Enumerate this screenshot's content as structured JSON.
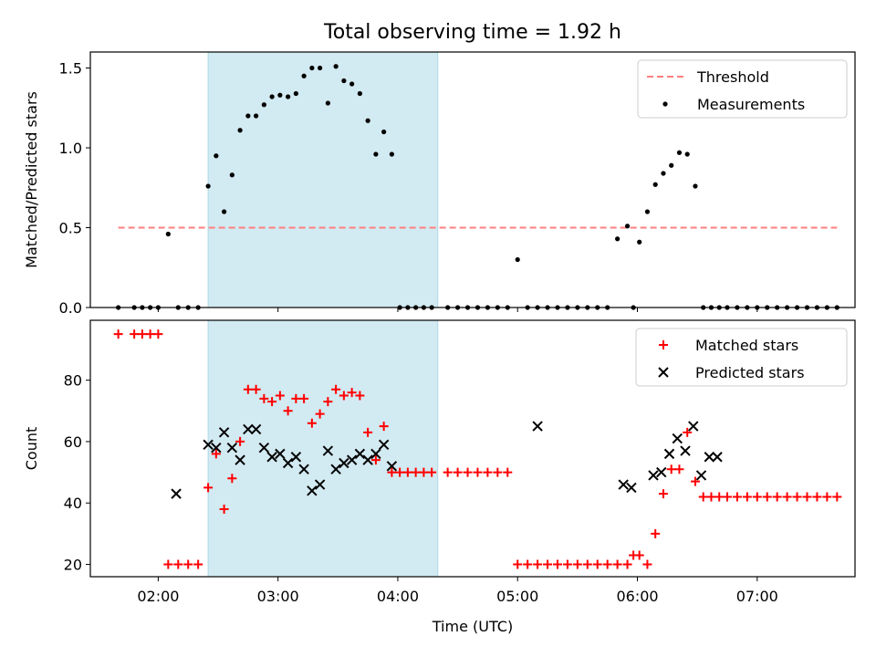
{
  "title": "Total observing time = 1.92 h",
  "chart_data": [
    {
      "type": "scatter",
      "panel": "top",
      "ylabel": "Matched/Predicted stars",
      "xlabel": "",
      "xlim": [
        "01:26",
        "07:49"
      ],
      "ylim": [
        0,
        1.6
      ],
      "yticks": [
        0.0,
        0.5,
        1.0,
        1.5
      ],
      "ytick_labels": [
        "0.0",
        "0.5",
        "1.0",
        "1.5"
      ],
      "xticks": [
        "02:00",
        "03:00",
        "04:00",
        "05:00",
        "06:00",
        "07:00"
      ],
      "shaded_region": [
        "02:25",
        "04:20"
      ],
      "shade_color": "#add8e6",
      "legend_position": "top-right",
      "series": [
        {
          "name": "Threshold",
          "style": "dashed-line",
          "color": "#ff7f7f",
          "x": [
            "01:40",
            "07:40"
          ],
          "y": [
            0.5,
            0.5
          ]
        },
        {
          "name": "Measurements",
          "style": "dot",
          "color": "#000000",
          "x": [
            "01:40",
            "01:48",
            "01:52",
            "01:56",
            "02:00",
            "02:05",
            "02:10",
            "02:15",
            "02:20",
            "02:25",
            "02:29",
            "02:33",
            "02:37",
            "02:41",
            "02:45",
            "02:49",
            "02:53",
            "02:57",
            "03:01",
            "03:05",
            "03:09",
            "03:13",
            "03:17",
            "03:21",
            "03:25",
            "03:29",
            "03:33",
            "03:37",
            "03:41",
            "03:45",
            "03:49",
            "03:53",
            "03:57",
            "04:01",
            "04:05",
            "04:09",
            "04:13",
            "04:17",
            "04:25",
            "04:30",
            "04:35",
            "04:40",
            "04:45",
            "04:50",
            "04:55",
            "05:00",
            "05:05",
            "05:10",
            "05:15",
            "05:20",
            "05:25",
            "05:30",
            "05:35",
            "05:40",
            "05:45",
            "05:50",
            "05:55",
            "05:58",
            "06:01",
            "06:05",
            "06:09",
            "06:13",
            "06:17",
            "06:21",
            "06:25",
            "06:29",
            "06:33",
            "06:37",
            "06:41",
            "06:45",
            "06:50",
            "06:55",
            "07:00",
            "07:05",
            "07:10",
            "07:15",
            "07:20",
            "07:25",
            "07:30",
            "07:35",
            "07:40"
          ],
          "y": [
            0,
            0,
            0,
            0,
            0,
            0.46,
            0,
            0,
            0,
            0.76,
            0.95,
            0.6,
            0.83,
            1.11,
            1.2,
            1.2,
            1.27,
            1.32,
            1.33,
            1.32,
            1.34,
            1.45,
            1.5,
            1.5,
            1.28,
            1.51,
            1.42,
            1.4,
            1.34,
            1.17,
            0.96,
            1.1,
            0.96,
            0,
            0,
            0,
            0,
            0,
            0,
            0,
            0,
            0,
            0,
            0,
            0,
            0.3,
            0,
            0,
            0,
            0,
            0,
            0,
            0,
            0,
            0,
            0.43,
            0.51,
            0,
            0.41,
            0.6,
            0.77,
            0.84,
            0.89,
            0.97,
            0.96,
            0.76,
            0,
            0,
            0,
            0,
            0,
            0,
            0,
            0,
            0,
            0,
            0,
            0,
            0,
            0,
            0
          ]
        }
      ]
    },
    {
      "type": "scatter",
      "panel": "bottom",
      "ylabel": "Count",
      "xlabel": "Time (UTC)",
      "xlim": [
        "01:26",
        "07:49"
      ],
      "ylim": [
        16,
        99.5
      ],
      "yticks": [
        20,
        40,
        60,
        80
      ],
      "ytick_labels": [
        "20",
        "40",
        "60",
        "80"
      ],
      "xticks": [
        "02:00",
        "03:00",
        "04:00",
        "05:00",
        "06:00",
        "07:00"
      ],
      "xtick_labels": [
        "02:00",
        "03:00",
        "04:00",
        "05:00",
        "06:00",
        "07:00"
      ],
      "shaded_region": [
        "02:25",
        "04:20"
      ],
      "shade_color": "#add8e6",
      "legend_position": "top-right",
      "series": [
        {
          "name": "Matched stars",
          "style": "plus",
          "color": "#ff0000",
          "x": [
            "01:40",
            "01:48",
            "01:52",
            "01:56",
            "02:00",
            "02:05",
            "02:10",
            "02:15",
            "02:20",
            "02:25",
            "02:29",
            "02:33",
            "02:37",
            "02:41",
            "02:45",
            "02:49",
            "02:53",
            "02:57",
            "03:01",
            "03:05",
            "03:09",
            "03:13",
            "03:17",
            "03:21",
            "03:25",
            "03:29",
            "03:33",
            "03:37",
            "03:41",
            "03:45",
            "03:49",
            "03:53",
            "03:57",
            "04:01",
            "04:05",
            "04:09",
            "04:13",
            "04:17",
            "04:25",
            "04:30",
            "04:35",
            "04:40",
            "04:45",
            "04:50",
            "04:55",
            "05:00",
            "05:05",
            "05:10",
            "05:15",
            "05:20",
            "05:25",
            "05:30",
            "05:35",
            "05:40",
            "05:45",
            "05:50",
            "05:55",
            "05:58",
            "06:01",
            "06:05",
            "06:09",
            "06:13",
            "06:17",
            "06:21",
            "06:25",
            "06:29",
            "06:33",
            "06:37",
            "06:41",
            "06:45",
            "06:50",
            "06:55",
            "07:00",
            "07:05",
            "07:10",
            "07:15",
            "07:20",
            "07:25",
            "07:30",
            "07:35",
            "07:40"
          ],
          "y": [
            95,
            95,
            95,
            95,
            95,
            20,
            20,
            20,
            20,
            45,
            56,
            38,
            48,
            60,
            77,
            77,
            74,
            73,
            75,
            70,
            74,
            74,
            66,
            69,
            73,
            77,
            75,
            76,
            75,
            63,
            54,
            65,
            50,
            50,
            50,
            50,
            50,
            50,
            50,
            50,
            50,
            50,
            50,
            50,
            50,
            20,
            20,
            20,
            20,
            20,
            20,
            20,
            20,
            20,
            20,
            20,
            20,
            23,
            23,
            20,
            30,
            43,
            51,
            51,
            63,
            47,
            42,
            42,
            42,
            42,
            42,
            42,
            42,
            42,
            42,
            42,
            42,
            42,
            42,
            42,
            42
          ]
        },
        {
          "name": "Predicted stars",
          "style": "x",
          "color": "#000000",
          "x": [
            "02:09",
            "02:25",
            "02:29",
            "02:33",
            "02:37",
            "02:41",
            "02:45",
            "02:49",
            "02:53",
            "02:57",
            "03:01",
            "03:05",
            "03:09",
            "03:13",
            "03:17",
            "03:21",
            "03:25",
            "03:29",
            "03:33",
            "03:37",
            "03:41",
            "03:45",
            "03:49",
            "03:53",
            "03:57",
            "05:10",
            "05:53",
            "05:57",
            "06:08",
            "06:12",
            "06:16",
            "06:20",
            "06:24",
            "06:28",
            "06:32",
            "06:36",
            "06:40"
          ],
          "y": [
            43,
            59,
            58,
            63,
            58,
            54,
            64,
            64,
            58,
            55,
            56,
            53,
            55,
            51,
            44,
            46,
            57,
            51,
            53,
            54,
            56,
            54,
            56,
            59,
            52,
            65,
            46,
            45,
            49,
            50,
            56,
            61,
            57,
            65,
            49,
            55,
            55
          ]
        }
      ]
    }
  ]
}
